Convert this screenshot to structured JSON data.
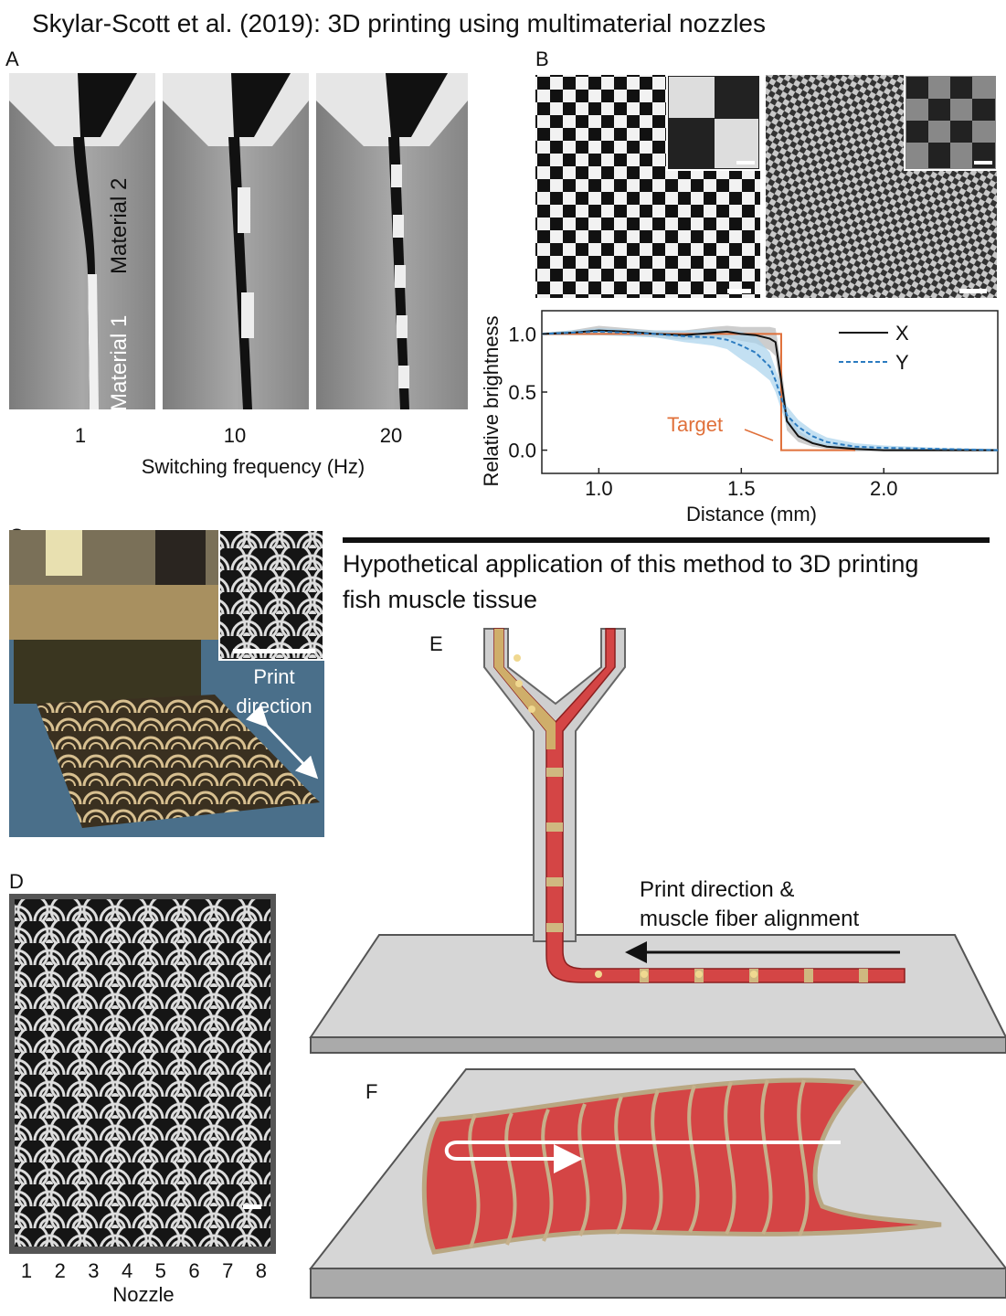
{
  "title": "Skylar-Scott et al. (2019): 3D printing using multimaterial nozzles",
  "panel_a": {
    "label": "A",
    "material_labels": [
      "Material 2",
      "Material 1"
    ],
    "frequencies": [
      1,
      10,
      20
    ],
    "x_label": "Switching frequency (Hz)"
  },
  "panel_b": {
    "label": "B",
    "chart": {
      "type": "line",
      "x_label": "Distance (mm)",
      "y_label": "Relative brightness",
      "xlim": [
        0.8,
        2.4
      ],
      "ylim": [
        -0.2,
        1.2
      ],
      "xticks": [
        {
          "value": 1,
          "label": "1.0"
        },
        {
          "value": 1.5,
          "label": "1.5"
        },
        {
          "value": 2,
          "label": "2.0"
        }
      ],
      "yticks": [
        {
          "value": 0,
          "label": "0.0"
        },
        {
          "value": 0.5,
          "label": "0.5"
        },
        {
          "value": 1,
          "label": "1.0"
        }
      ],
      "x": [
        0.8,
        0.9,
        1.0,
        1.1,
        1.2,
        1.3,
        1.4,
        1.45,
        1.5,
        1.55,
        1.6,
        1.62,
        1.64,
        1.66,
        1.7,
        1.75,
        1.8,
        1.9,
        2.0,
        2.2,
        2.4
      ],
      "series": [
        {
          "name": "X",
          "color": "#111111",
          "style": "solid",
          "band_color": "#b8b8b8",
          "values": [
            1.0,
            1.01,
            1.03,
            1.02,
            1.0,
            0.99,
            1.01,
            1.02,
            1.0,
            0.99,
            0.96,
            0.93,
            0.6,
            0.25,
            0.12,
            0.06,
            0.03,
            0.01,
            0.0,
            0.0,
            0.0
          ],
          "errors": [
            0.01,
            0.02,
            0.04,
            0.03,
            0.03,
            0.04,
            0.05,
            0.05,
            0.06,
            0.07,
            0.1,
            0.12,
            0.15,
            0.08,
            0.05,
            0.03,
            0.02,
            0.02,
            0.01,
            0.01,
            0.01
          ]
        },
        {
          "name": "Y",
          "color": "#2b7bc0",
          "style": "dashed",
          "band_color": "#a9d3ec",
          "values": [
            1.0,
            1.01,
            1.02,
            1.01,
            1.0,
            0.98,
            0.97,
            0.95,
            0.9,
            0.84,
            0.72,
            0.6,
            0.45,
            0.3,
            0.2,
            0.12,
            0.07,
            0.03,
            0.02,
            0.01,
            0.0
          ],
          "errors": [
            0.01,
            0.02,
            0.03,
            0.03,
            0.03,
            0.05,
            0.07,
            0.08,
            0.12,
            0.14,
            0.12,
            0.1,
            0.1,
            0.08,
            0.06,
            0.05,
            0.04,
            0.03,
            0.02,
            0.01,
            0.01
          ]
        }
      ],
      "target": {
        "label": "Target",
        "color": "#e0703a",
        "x": [
          0.8,
          1.64,
          1.64,
          1.9
        ],
        "values": [
          1,
          1,
          0,
          0
        ]
      }
    }
  },
  "panel_c": {
    "label": "C",
    "annotation": "Print\ndirection"
  },
  "panel_d": {
    "label": "D",
    "nozzles": [
      1,
      2,
      3,
      4,
      5,
      6,
      7,
      8
    ],
    "x_label": "Nozzle"
  },
  "heading": "Hypothetical application of this method to 3D printing fish muscle tissue",
  "panel_e": {
    "label": "E",
    "annotation": "Print direction & muscle fiber alignment"
  },
  "panel_f": {
    "label": "F"
  }
}
